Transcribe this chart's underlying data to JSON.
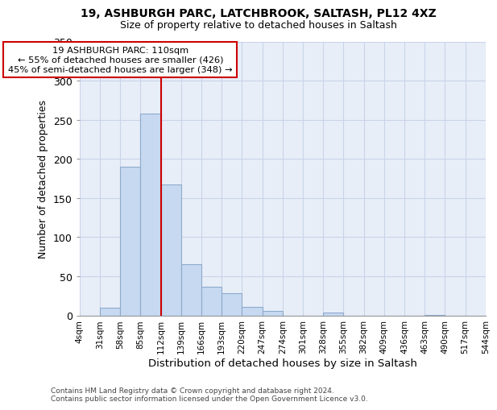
{
  "title1": "19, ASHBURGH PARC, LATCHBROOK, SALTASH, PL12 4XZ",
  "title2": "Size of property relative to detached houses in Saltash",
  "xlabel": "Distribution of detached houses by size in Saltash",
  "ylabel": "Number of detached properties",
  "footnote1": "Contains HM Land Registry data © Crown copyright and database right 2024.",
  "footnote2": "Contains public sector information licensed under the Open Government Licence v3.0.",
  "bin_labels": [
    "4sqm",
    "31sqm",
    "58sqm",
    "85sqm",
    "112sqm",
    "139sqm",
    "166sqm",
    "193sqm",
    "220sqm",
    "247sqm",
    "274sqm",
    "301sqm",
    "328sqm",
    "355sqm",
    "382sqm",
    "409sqm",
    "436sqm",
    "463sqm",
    "490sqm",
    "517sqm",
    "544sqm"
  ],
  "bar_heights": [
    0,
    10,
    190,
    258,
    167,
    65,
    37,
    28,
    11,
    6,
    0,
    0,
    4,
    0,
    0,
    0,
    0,
    1,
    0,
    0,
    1
  ],
  "bar_color": "#c6d9f1",
  "bar_edge_color": "#8eaacc",
  "grid_color": "#c8d4e8",
  "background_color": "#e8eef8",
  "vline_color": "#cc0000",
  "annotation_line1": "19 ASHBURGH PARC: 110sqm",
  "annotation_line2": "← 55% of detached houses are smaller (426)",
  "annotation_line3": "45% of semi-detached houses are larger (348) →",
  "annotation_box_edge": "#cc0000",
  "ylim": [
    0,
    350
  ],
  "yticks": [
    0,
    50,
    100,
    150,
    200,
    250,
    300,
    350
  ],
  "bin_edges": [
    4,
    31,
    58,
    85,
    112,
    139,
    166,
    193,
    220,
    247,
    274,
    301,
    328,
    355,
    382,
    409,
    436,
    463,
    490,
    517,
    544
  ]
}
